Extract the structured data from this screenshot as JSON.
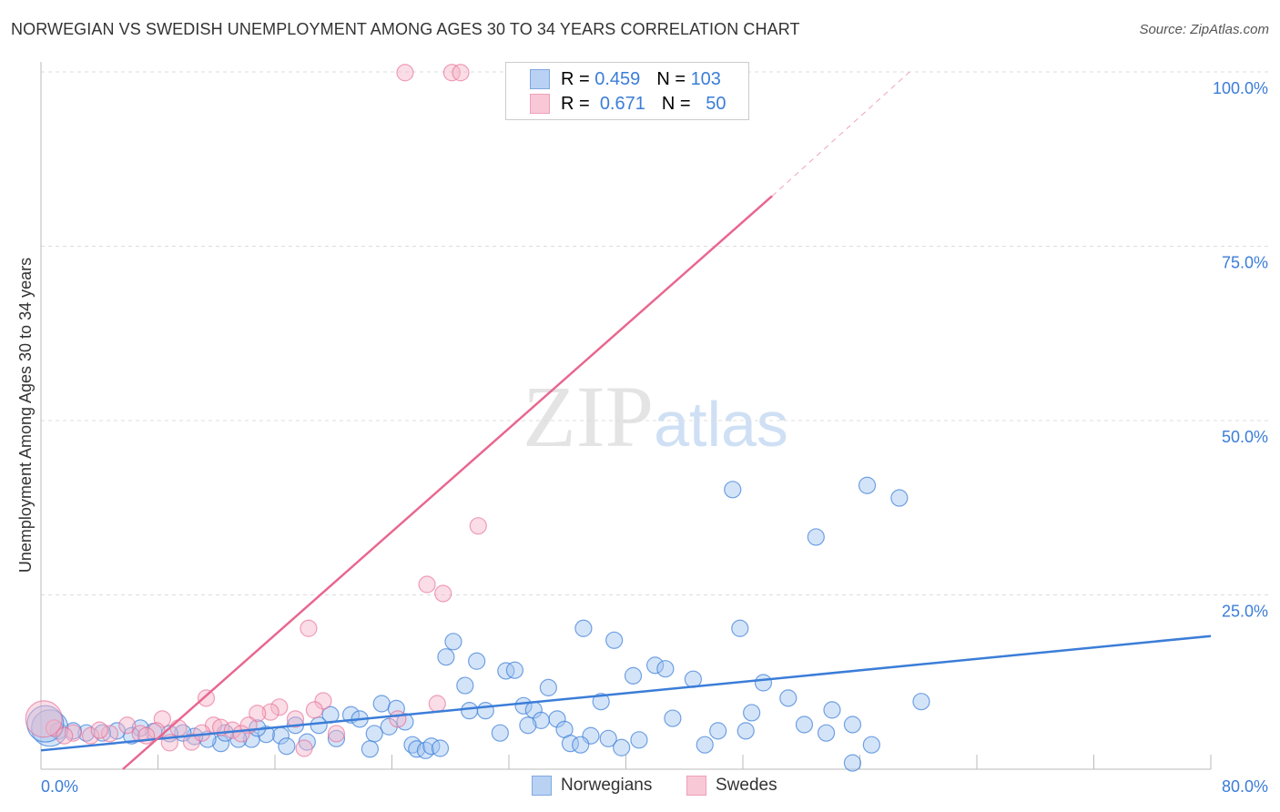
{
  "title": "NORWEGIAN VS SWEDISH UNEMPLOYMENT AMONG AGES 30 TO 34 YEARS CORRELATION CHART",
  "source": "Source: ZipAtlas.com",
  "legend": {
    "r_label": "R =",
    "n_label": "N =",
    "norwegians": {
      "r": "0.459",
      "n": "103"
    },
    "swedes": {
      "r": "0.671",
      "n": "50"
    }
  },
  "bottom_legend": {
    "norwegians": "Norwegians",
    "swedes": "Swedes"
  },
  "watermark": "ZIPatlas",
  "chart_data": {
    "type": "scatter",
    "title": "NORWEGIAN VS SWEDISH UNEMPLOYMENT AMONG AGES 30 TO 34 YEARS CORRELATION CHART",
    "xlabel": "",
    "ylabel": "Unemployment Among Ages 30 to 34 years",
    "xlim": [
      0,
      80
    ],
    "ylim": [
      0,
      100
    ],
    "x_tick_labels": [
      "0.0%",
      "80.0%"
    ],
    "y_tick_labels": [
      "25.0%",
      "50.0%",
      "75.0%",
      "100.0%"
    ],
    "y_ticks": [
      25,
      50,
      75,
      100
    ],
    "grid": true,
    "colors": {
      "norwegians": "#3b7dd8",
      "swedes": "#e8668f"
    },
    "series": [
      {
        "name": "Norwegians",
        "color": "#3b7dd8",
        "trend": {
          "x": [
            0,
            80
          ],
          "y": [
            2.7,
            19.1
          ]
        },
        "points": [
          [
            47.3,
            40.1
          ],
          [
            56.5,
            40.7
          ],
          [
            58.7,
            38.9
          ],
          [
            53.0,
            33.3
          ],
          [
            37.1,
            20.2
          ],
          [
            47.8,
            20.2
          ],
          [
            39.2,
            18.5
          ],
          [
            28.2,
            18.3
          ],
          [
            27.7,
            16.1
          ],
          [
            29.8,
            15.5
          ],
          [
            31.8,
            14.1
          ],
          [
            32.4,
            14.2
          ],
          [
            42.0,
            14.9
          ],
          [
            42.7,
            14.4
          ],
          [
            40.5,
            13.4
          ],
          [
            44.6,
            12.9
          ],
          [
            34.7,
            11.7
          ],
          [
            29.0,
            12.0
          ],
          [
            49.4,
            12.4
          ],
          [
            51.1,
            10.2
          ],
          [
            60.2,
            9.7
          ],
          [
            38.3,
            9.7
          ],
          [
            23.3,
            9.4
          ],
          [
            33.0,
            9.1
          ],
          [
            24.3,
            8.7
          ],
          [
            29.3,
            8.4
          ],
          [
            30.4,
            8.4
          ],
          [
            33.7,
            8.5
          ],
          [
            54.1,
            8.5
          ],
          [
            48.6,
            8.1
          ],
          [
            21.2,
            7.8
          ],
          [
            19.8,
            7.8
          ],
          [
            43.2,
            7.3
          ],
          [
            35.3,
            7.2
          ],
          [
            21.8,
            7.2
          ],
          [
            24.9,
            6.8
          ],
          [
            34.2,
            7.0
          ],
          [
            52.2,
            6.4
          ],
          [
            55.5,
            6.4
          ],
          [
            19.0,
            6.3
          ],
          [
            17.4,
            6.3
          ],
          [
            23.8,
            6.1
          ],
          [
            33.3,
            6.3
          ],
          [
            35.8,
            5.7
          ],
          [
            46.3,
            5.5
          ],
          [
            48.2,
            5.5
          ],
          [
            53.7,
            5.2
          ],
          [
            31.4,
            5.2
          ],
          [
            22.8,
            5.1
          ],
          [
            37.6,
            4.8
          ],
          [
            38.8,
            4.4
          ],
          [
            40.9,
            4.2
          ],
          [
            20.2,
            4.4
          ],
          [
            16.4,
            4.8
          ],
          [
            18.2,
            3.9
          ],
          [
            25.4,
            3.5
          ],
          [
            36.2,
            3.7
          ],
          [
            36.9,
            3.5
          ],
          [
            45.4,
            3.5
          ],
          [
            56.8,
            3.5
          ],
          [
            22.5,
            2.9
          ],
          [
            25.7,
            2.9
          ],
          [
            26.3,
            2.7
          ],
          [
            26.7,
            3.3
          ],
          [
            27.3,
            3.0
          ],
          [
            39.7,
            3.1
          ],
          [
            55.5,
            0.9
          ],
          [
            16.8,
            3.3
          ],
          [
            15.4,
            5.0
          ],
          [
            14.4,
            4.3
          ],
          [
            13.5,
            4.3
          ],
          [
            12.3,
            3.7
          ],
          [
            11.4,
            4.3
          ],
          [
            10.5,
            4.7
          ],
          [
            9.7,
            5.2
          ],
          [
            8.8,
            5.1
          ],
          [
            7.7,
            5.4
          ],
          [
            6.8,
            5.9
          ],
          [
            6.2,
            4.8
          ],
          [
            5.2,
            5.5
          ],
          [
            4.2,
            5.2
          ],
          [
            3.1,
            5.2
          ],
          [
            2.2,
            5.5
          ],
          [
            1.2,
            5.5
          ],
          [
            14.8,
            5.9
          ],
          [
            12.6,
            5.2
          ],
          [
            0.6,
            5.9,
            "large"
          ],
          [
            0.3,
            6.5,
            "large"
          ]
        ]
      },
      {
        "name": "Swedes",
        "color": "#e8668f",
        "trend": {
          "x": [
            5.6,
            50
          ],
          "y": [
            0,
            82.2
          ],
          "dashed_to": [
            59.4,
            100
          ]
        },
        "points": [
          [
            24.9,
            99.9
          ],
          [
            28.1,
            99.9
          ],
          [
            28.7,
            99.9
          ],
          [
            45.2,
            99.9
          ],
          [
            29.9,
            34.9
          ],
          [
            26.4,
            26.5
          ],
          [
            27.5,
            25.2
          ],
          [
            18.3,
            20.2
          ],
          [
            11.3,
            10.2
          ],
          [
            19.3,
            9.8
          ],
          [
            27.1,
            9.4
          ],
          [
            16.3,
            8.9
          ],
          [
            15.7,
            8.2
          ],
          [
            14.8,
            8.0
          ],
          [
            18.7,
            8.5
          ],
          [
            8.3,
            7.2
          ],
          [
            17.4,
            7.2
          ],
          [
            24.4,
            7.2
          ],
          [
            11.8,
            6.3
          ],
          [
            14.2,
            6.3
          ],
          [
            12.3,
            6.0
          ],
          [
            5.9,
            6.3
          ],
          [
            9.4,
            5.9
          ],
          [
            13.1,
            5.6
          ],
          [
            20.2,
            5.1
          ],
          [
            0.9,
            5.9
          ],
          [
            2.2,
            5.2
          ],
          [
            3.4,
            4.8
          ],
          [
            4.7,
            5.1
          ],
          [
            6.8,
            5.1
          ],
          [
            7.9,
            5.5
          ],
          [
            10.3,
            3.9
          ],
          [
            8.8,
            3.8
          ],
          [
            18.0,
            3.0
          ],
          [
            13.7,
            5.1
          ],
          [
            7.2,
            4.8
          ],
          [
            1.6,
            4.8
          ],
          [
            4.0,
            5.6
          ],
          [
            11.0,
            5.2
          ],
          [
            0.2,
            7.2,
            "large"
          ]
        ]
      }
    ]
  }
}
